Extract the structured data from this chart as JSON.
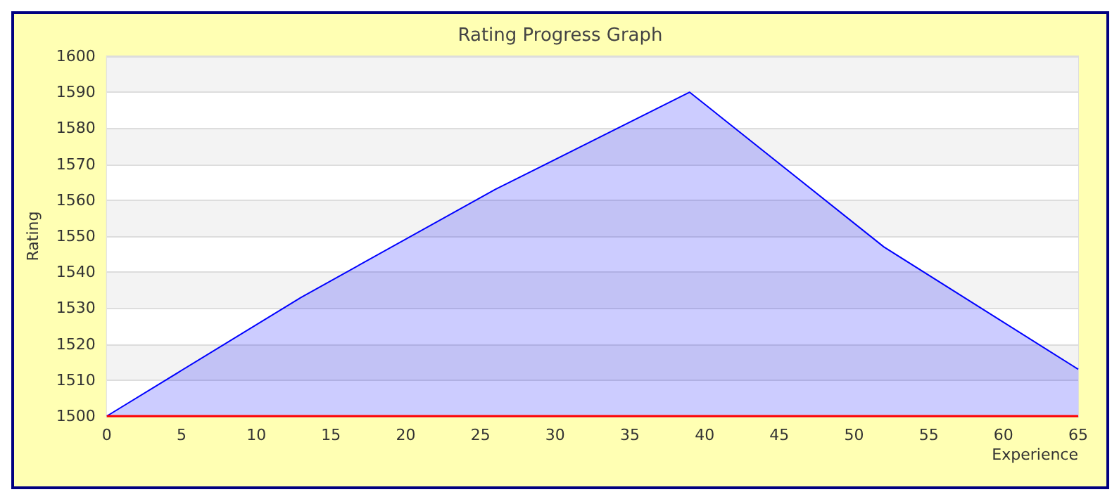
{
  "chart_data": {
    "type": "area",
    "title": "Rating Progress Graph",
    "xlabel": "Experience",
    "ylabel": "Rating",
    "x": [
      0,
      13,
      26,
      39,
      52,
      65
    ],
    "series": [
      {
        "color": "#0000ff",
        "values": [
          1500,
          1533,
          1563,
          1590,
          1547,
          1513
        ]
      }
    ],
    "xlim": [
      0,
      65
    ],
    "xticks": [
      0,
      5,
      10,
      15,
      20,
      25,
      30,
      35,
      40,
      45,
      50,
      55,
      60,
      65
    ],
    "ylim": [
      1500,
      1600
    ],
    "yticks": [
      1500,
      1510,
      1520,
      1530,
      1540,
      1550,
      1560,
      1570,
      1580,
      1590,
      1600
    ],
    "ref_lines": [
      {
        "axis": "y",
        "value": 1500,
        "color": "#ff0000"
      }
    ],
    "grid": "y",
    "marker": "none"
  }
}
